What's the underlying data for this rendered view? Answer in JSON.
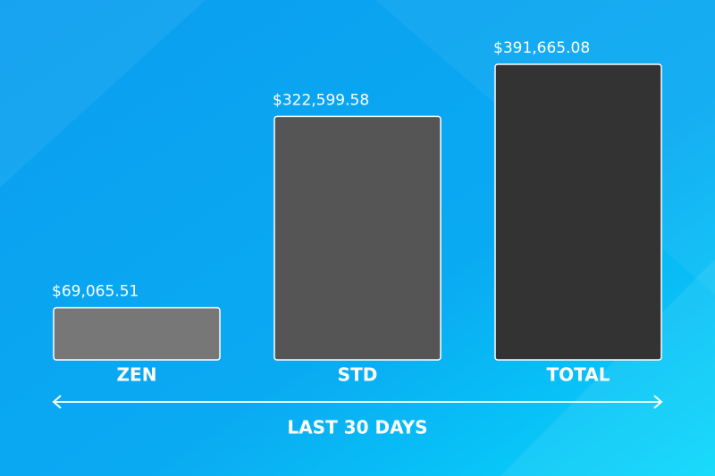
{
  "chart_data": {
    "type": "bar",
    "categories": [
      "ZEN",
      "STD",
      "TOTAL"
    ],
    "values": [
      69065.51,
      322599.58,
      391665.08
    ],
    "value_labels": [
      "$69,065.51",
      "$322,599.58",
      "$391,665.08"
    ],
    "colors": [
      "#777777",
      "#555555",
      "#333333"
    ],
    "x_label": "LAST 30 DAYS"
  }
}
